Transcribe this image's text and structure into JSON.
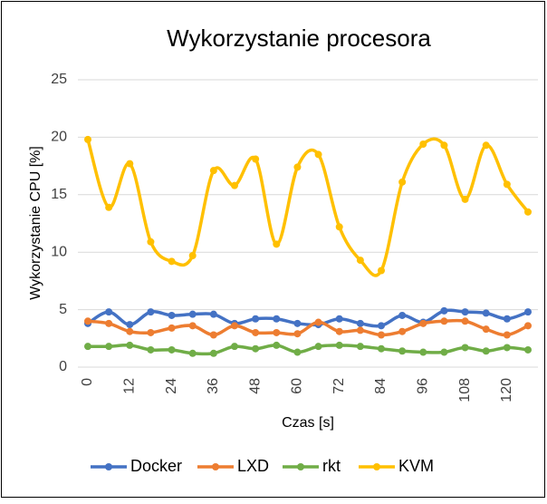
{
  "chart_data": {
    "type": "line",
    "title": "Wykorzystanie procesora",
    "x_label": "Czas [s]",
    "y_label": "Wykorzystanie CPU [%]",
    "categories": [
      0,
      null,
      12,
      null,
      24,
      null,
      36,
      null,
      48,
      null,
      60,
      null,
      72,
      null,
      84,
      null,
      96,
      null,
      108,
      null,
      120,
      null
    ],
    "series": [
      {
        "name": "Docker",
        "color": "#4472c4",
        "values": [
          3.8,
          4.8,
          3.7,
          4.8,
          4.5,
          4.6,
          4.6,
          3.8,
          4.2,
          4.2,
          3.8,
          3.7,
          4.2,
          3.8,
          3.6,
          4.5,
          3.9,
          4.9,
          4.8,
          4.7,
          4.2,
          4.8
        ]
      },
      {
        "name": "LXD",
        "color": "#ed7d31",
        "values": [
          4.0,
          3.8,
          3.1,
          3.0,
          3.4,
          3.6,
          2.8,
          3.6,
          3.0,
          3.0,
          2.9,
          3.9,
          3.1,
          3.2,
          2.8,
          3.1,
          3.8,
          4.0,
          4.0,
          3.3,
          2.8,
          3.6
        ]
      },
      {
        "name": "rkt",
        "color": "#70ad47",
        "values": [
          1.8,
          1.8,
          1.9,
          1.5,
          1.5,
          1.2,
          1.2,
          1.8,
          1.6,
          1.9,
          1.3,
          1.8,
          1.9,
          1.8,
          1.6,
          1.4,
          1.3,
          1.3,
          1.7,
          1.4,
          1.7,
          1.5
        ]
      },
      {
        "name": "KVM",
        "color": "#ffc000",
        "values": [
          19.8,
          13.9,
          17.7,
          10.9,
          9.2,
          9.7,
          17.1,
          15.8,
          18.1,
          10.7,
          17.4,
          18.5,
          12.2,
          9.3,
          8.4,
          16.1,
          19.4,
          19.3,
          14.6,
          19.3,
          15.9,
          13.5
        ]
      }
    ],
    "ylim": [
      0,
      25
    ],
    "yticks": [
      0,
      5,
      10,
      15,
      20,
      25
    ],
    "grid": true,
    "smooth": true,
    "legend": "bottom"
  }
}
